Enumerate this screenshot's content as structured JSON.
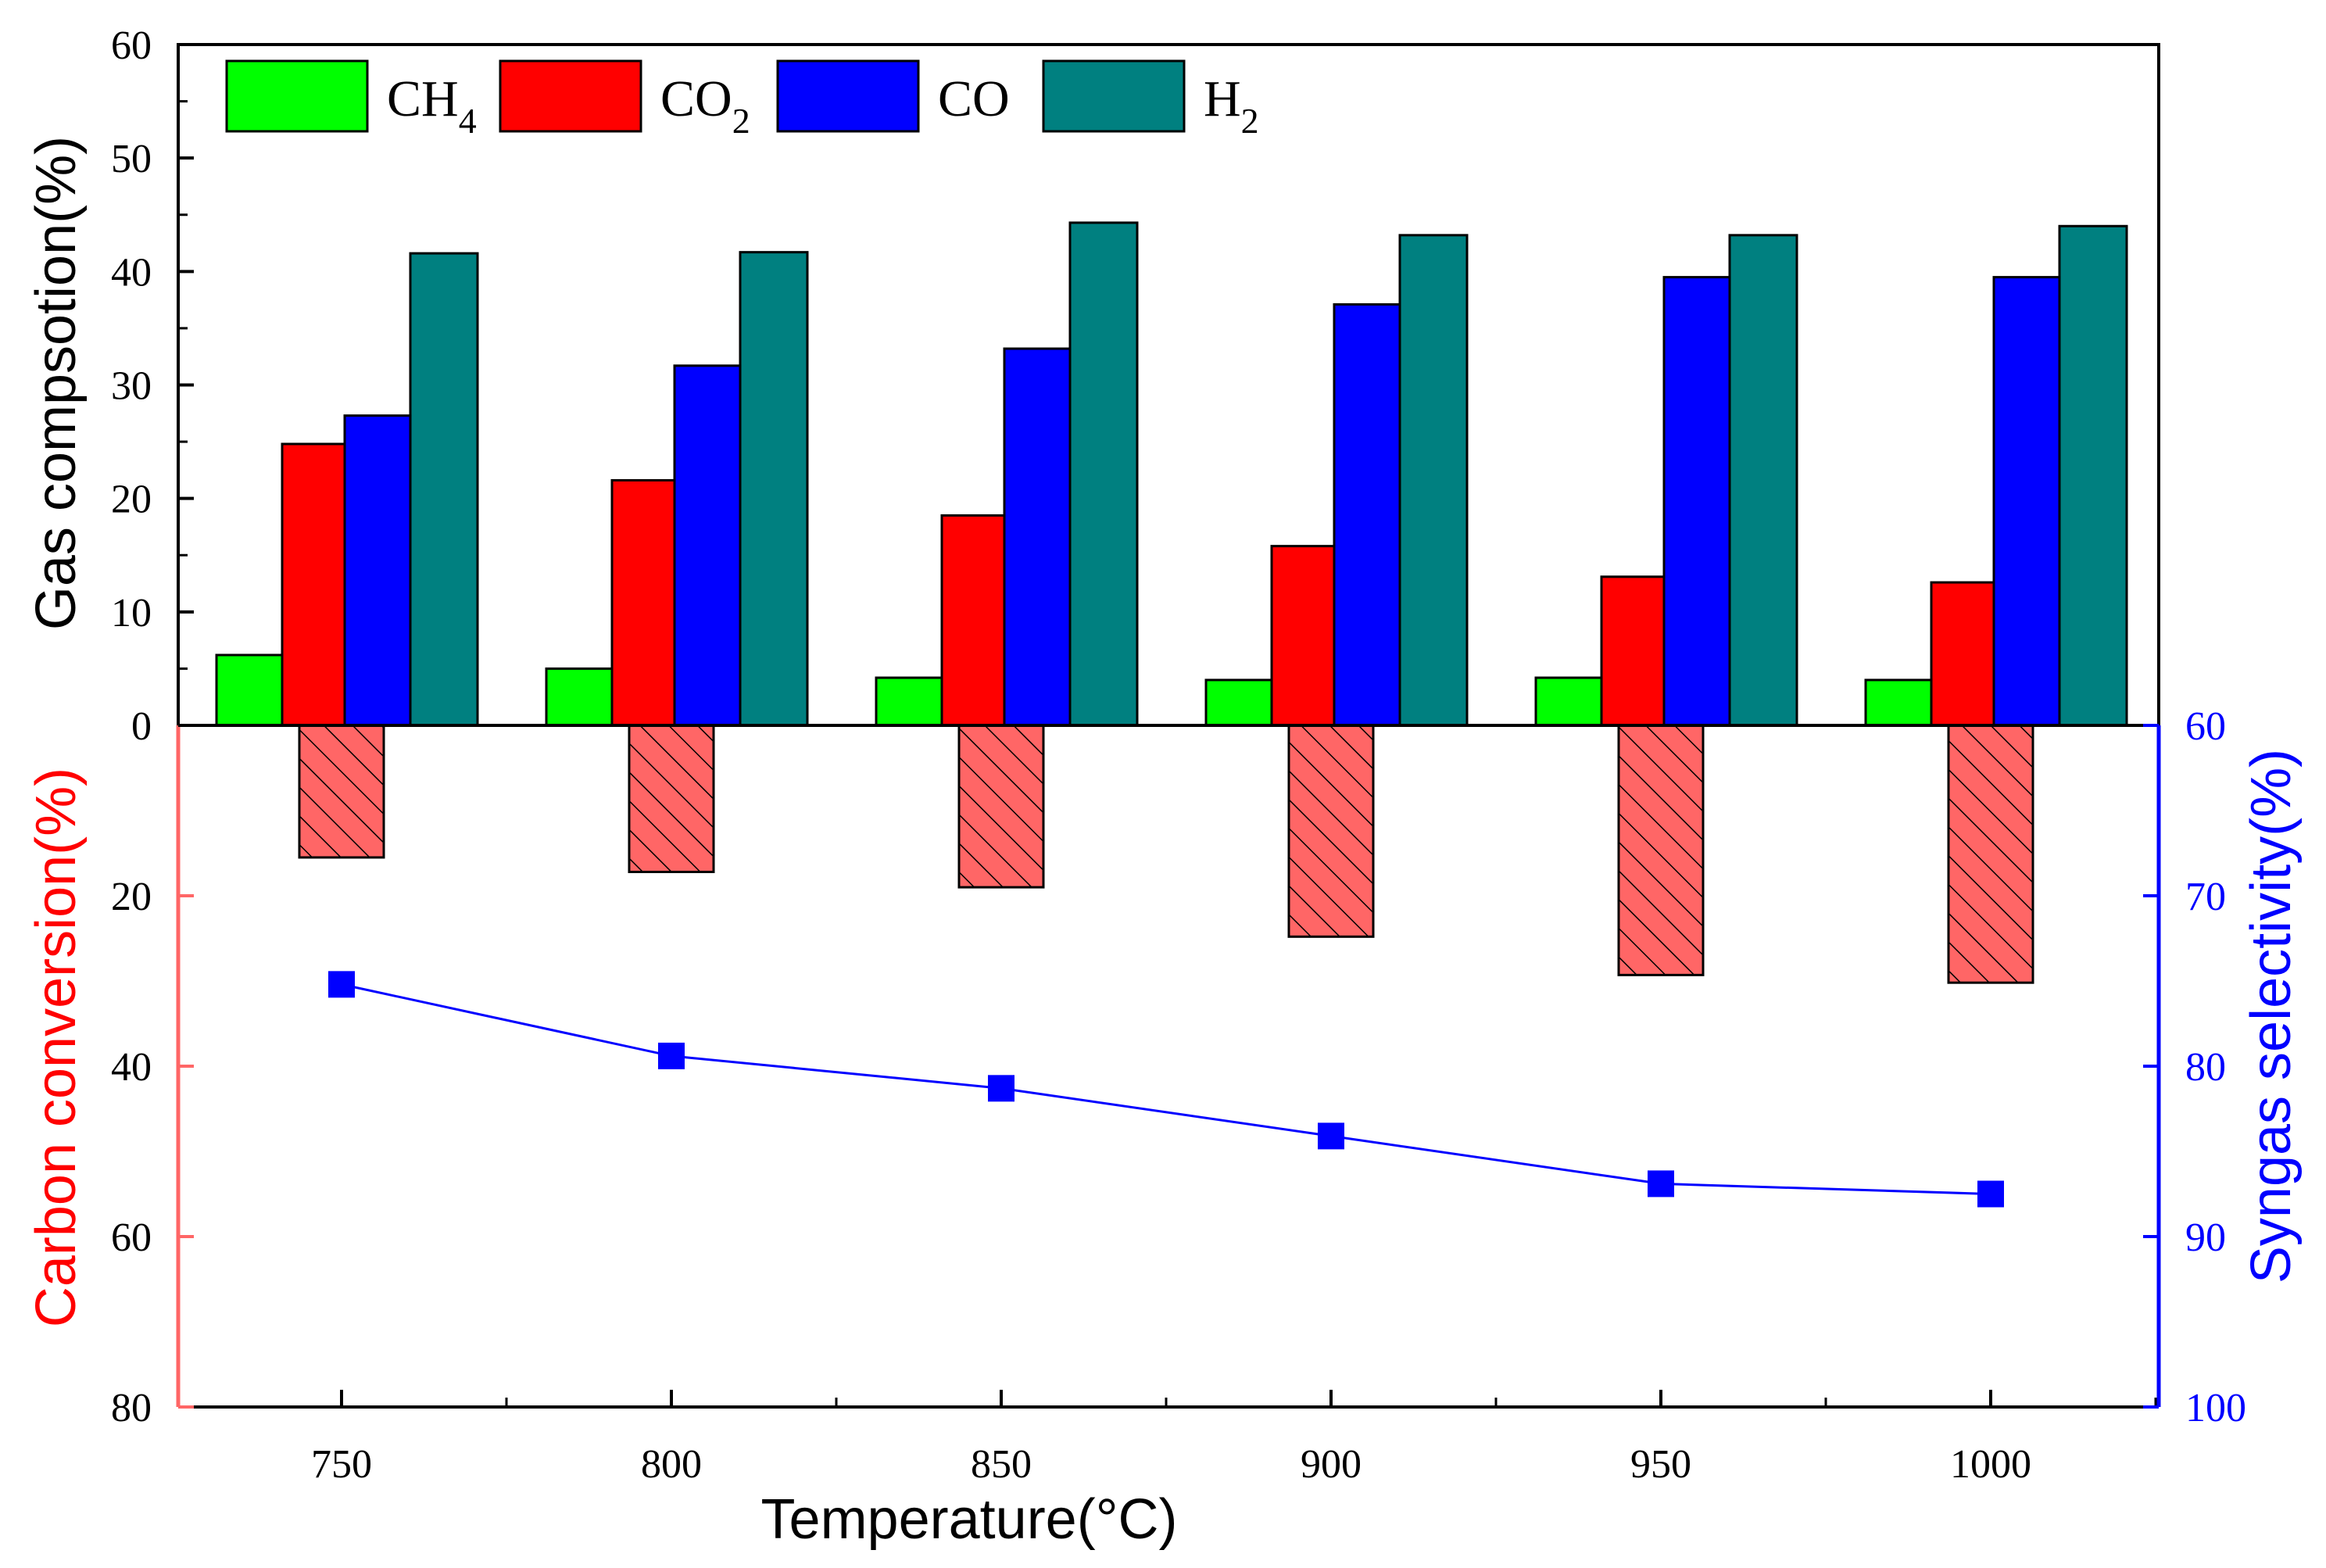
{
  "chart_data": {
    "type": "bar+line",
    "x_title": "Temperature(°C)",
    "categories": [
      "750",
      "800",
      "850",
      "900",
      "950",
      "1000"
    ],
    "top_panel": {
      "ylabel": "Gas compsotion(%)",
      "ylim": [
        0,
        60
      ],
      "yticks": [
        "0",
        "10",
        "20",
        "30",
        "40",
        "50",
        "60"
      ],
      "legend_position": "top-left",
      "series": [
        {
          "name": "CH",
          "subscript": "4",
          "color": "#00ff00",
          "values": [
            6.2,
            5.0,
            4.2,
            4.0,
            4.2,
            4.0
          ]
        },
        {
          "name": "CO",
          "subscript": "2",
          "color": "#ff0000",
          "values": [
            24.8,
            21.6,
            18.5,
            15.8,
            13.1,
            12.6
          ]
        },
        {
          "name": "CO",
          "subscript": "",
          "color": "#0000ff",
          "values": [
            27.3,
            31.7,
            33.2,
            37.1,
            39.5,
            39.5
          ]
        },
        {
          "name": "H",
          "subscript": "2",
          "color": "#008080",
          "values": [
            41.6,
            41.7,
            44.3,
            43.2,
            43.2,
            44.0
          ]
        }
      ]
    },
    "bottom_panel": {
      "left_axis": {
        "label": "Carbon conversion(%)",
        "color": "#ff6666",
        "ylim": [
          0,
          80
        ],
        "yticks": [
          "20",
          "40",
          "60",
          "80"
        ],
        "series": {
          "name": "Carbon conversion",
          "fill": "#ff6666",
          "hatch": "diagonal",
          "values": [
            15.5,
            17.2,
            19.0,
            24.8,
            29.3,
            30.2
          ]
        }
      },
      "right_axis": {
        "label": "Syngas selectivity(%)",
        "color": "#0000ff",
        "ylim": [
          60,
          100
        ],
        "yticks": [
          "60",
          "70",
          "80",
          "90",
          "100"
        ],
        "series": {
          "name": "Syngas selectivity",
          "marker": "square",
          "values": [
            75.2,
            79.4,
            81.3,
            84.1,
            86.9,
            87.5
          ]
        }
      }
    }
  }
}
